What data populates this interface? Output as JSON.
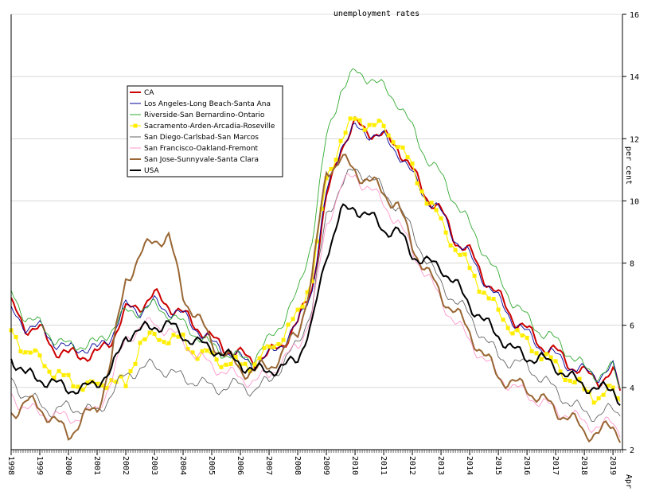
{
  "chart_data": {
    "type": "line",
    "title": "unemployment rates",
    "ylabel": "per cent",
    "xlabel": "",
    "ylim": [
      2,
      16
    ],
    "y_ticks": [
      2,
      4,
      6,
      8,
      10,
      12,
      14,
      16
    ],
    "x_range": [
      1998.0,
      2019.33
    ],
    "x_ticks": [
      "1998",
      "1999",
      "2000",
      "2001",
      "2002",
      "2003",
      "2004",
      "2005",
      "2006",
      "2007",
      "2008",
      "2009",
      "2010",
      "2011",
      "2012",
      "2013",
      "2014",
      "2015",
      "2016",
      "2017",
      "2018",
      "2019"
    ],
    "x_end_label": "Apr",
    "grid": "horizontal",
    "legend_position": "top-left",
    "series": [
      {
        "name": "CA",
        "color": "#cc0000",
        "style": "thick",
        "x": [
          1998.0,
          1998.5,
          1999.0,
          1999.5,
          2000.0,
          2000.5,
          2001.0,
          2001.5,
          2002.0,
          2002.5,
          2003.0,
          2003.5,
          2004.0,
          2004.5,
          2005.0,
          2005.5,
          2006.0,
          2006.5,
          2007.0,
          2007.5,
          2008.0,
          2008.5,
          2009.0,
          2009.5,
          2010.0,
          2010.5,
          2011.0,
          2011.5,
          2012.0,
          2012.5,
          2013.0,
          2013.5,
          2014.0,
          2014.5,
          2015.0,
          2015.5,
          2016.0,
          2016.5,
          2017.0,
          2017.5,
          2018.0,
          2018.5,
          2019.0,
          2019.25
        ],
        "y": [
          6.6,
          6.0,
          5.8,
          5.3,
          5.0,
          5.1,
          5.0,
          5.6,
          6.4,
          6.7,
          6.9,
          6.7,
          6.3,
          6.0,
          5.5,
          5.3,
          5.0,
          4.9,
          5.0,
          5.5,
          6.0,
          7.3,
          10.0,
          11.8,
          12.4,
          12.3,
          12.0,
          11.8,
          10.9,
          10.2,
          9.6,
          8.8,
          8.3,
          7.6,
          6.9,
          6.3,
          5.8,
          5.4,
          5.1,
          4.8,
          4.4,
          4.3,
          4.4,
          3.9
        ]
      },
      {
        "name": "Los Angeles-Long Beach-Santa Ana",
        "color": "#000099",
        "style": "thin",
        "x": [
          1998.0,
          1998.5,
          1999.0,
          1999.5,
          2000.0,
          2000.5,
          2001.0,
          2001.5,
          2002.0,
          2002.5,
          2003.0,
          2003.5,
          2004.0,
          2004.5,
          2005.0,
          2005.5,
          2006.0,
          2006.5,
          2007.0,
          2007.5,
          2008.0,
          2008.5,
          2009.0,
          2009.5,
          2010.0,
          2010.5,
          2011.0,
          2011.5,
          2012.0,
          2012.5,
          2013.0,
          2013.5,
          2014.0,
          2014.5,
          2015.0,
          2015.5,
          2016.0,
          2016.5,
          2017.0,
          2017.5,
          2018.0,
          2018.5,
          2019.0,
          2019.25
        ],
        "y": [
          6.4,
          6.0,
          5.9,
          5.5,
          5.2,
          5.3,
          5.2,
          5.7,
          6.6,
          6.5,
          6.7,
          6.5,
          6.3,
          5.9,
          5.4,
          5.2,
          4.9,
          4.8,
          5.0,
          5.5,
          6.0,
          7.2,
          10.2,
          11.8,
          12.3,
          12.2,
          12.0,
          11.6,
          10.8,
          10.1,
          9.6,
          8.8,
          8.2,
          7.5,
          6.8,
          6.2,
          5.7,
          5.3,
          5.0,
          4.7,
          4.5,
          4.4,
          4.6,
          4.0
        ]
      },
      {
        "name": "Riverside-San Bernardino-Ontario",
        "color": "#33aa33",
        "style": "thin",
        "x": [
          1998.0,
          1998.5,
          1999.0,
          1999.5,
          2000.0,
          2000.5,
          2001.0,
          2001.5,
          2002.0,
          2002.5,
          2003.0,
          2003.5,
          2004.0,
          2004.5,
          2005.0,
          2005.5,
          2006.0,
          2006.5,
          2007.0,
          2007.5,
          2008.0,
          2008.5,
          2009.0,
          2009.5,
          2010.0,
          2010.5,
          2011.0,
          2011.5,
          2012.0,
          2012.5,
          2013.0,
          2013.5,
          2014.0,
          2014.5,
          2015.0,
          2015.5,
          2016.0,
          2016.5,
          2017.0,
          2017.5,
          2018.0,
          2018.5,
          2019.0,
          2019.25
        ],
        "y": [
          7.0,
          6.3,
          6.0,
          5.6,
          5.3,
          5.4,
          5.4,
          5.9,
          6.4,
          6.5,
          6.6,
          6.4,
          6.0,
          5.7,
          5.3,
          5.1,
          4.9,
          5.0,
          5.5,
          6.2,
          7.0,
          8.8,
          12.0,
          13.6,
          14.1,
          14.0,
          13.6,
          13.2,
          12.3,
          11.4,
          10.8,
          10.0,
          9.2,
          8.4,
          7.5,
          6.8,
          6.2,
          5.8,
          5.5,
          5.1,
          4.6,
          4.4,
          4.6,
          4.0
        ]
      },
      {
        "name": "Sacramento-Arden-Arcadia-Roseville",
        "color": "#ffee00",
        "style": "marker",
        "x": [
          1998.0,
          1998.5,
          1999.0,
          1999.5,
          2000.0,
          2000.5,
          2001.0,
          2001.5,
          2002.0,
          2002.5,
          2003.0,
          2003.5,
          2004.0,
          2004.5,
          2005.0,
          2005.5,
          2006.0,
          2006.5,
          2007.0,
          2007.5,
          2008.0,
          2008.5,
          2009.0,
          2009.5,
          2010.0,
          2010.5,
          2011.0,
          2011.5,
          2012.0,
          2012.5,
          2013.0,
          2013.5,
          2014.0,
          2014.5,
          2015.0,
          2015.5,
          2016.0,
          2016.5,
          2017.0,
          2017.5,
          2018.0,
          2018.5,
          2019.0,
          2019.25
        ],
        "y": [
          5.8,
          5.2,
          4.9,
          4.5,
          4.2,
          4.1,
          4.0,
          4.3,
          4.0,
          5.5,
          5.6,
          5.6,
          5.5,
          5.1,
          5.0,
          4.8,
          4.7,
          4.8,
          5.2,
          5.7,
          6.3,
          7.6,
          10.6,
          12.0,
          12.6,
          12.5,
          12.3,
          11.9,
          11.0,
          10.1,
          9.3,
          8.5,
          7.8,
          7.1,
          6.4,
          5.9,
          5.4,
          5.1,
          4.7,
          4.3,
          3.9,
          3.7,
          3.9,
          3.6
        ]
      },
      {
        "name": "San Diego-Carlsbad-San Marcos",
        "color": "#666666",
        "style": "thin",
        "x": [
          1998.0,
          1998.5,
          1999.0,
          1999.5,
          2000.0,
          2000.5,
          2001.0,
          2001.5,
          2002.0,
          2002.5,
          2003.0,
          2003.5,
          2004.0,
          2004.5,
          2005.0,
          2005.5,
          2006.0,
          2006.5,
          2007.0,
          2007.5,
          2008.0,
          2008.5,
          2009.0,
          2009.5,
          2010.0,
          2010.5,
          2011.0,
          2011.5,
          2012.0,
          2012.5,
          2013.0,
          2013.5,
          2014.0,
          2014.5,
          2015.0,
          2015.5,
          2016.0,
          2016.5,
          2017.0,
          2017.5,
          2018.0,
          2018.5,
          2019.0,
          2019.25
        ],
        "y": [
          4.3,
          3.7,
          3.5,
          3.2,
          3.4,
          3.3,
          3.2,
          3.8,
          4.4,
          4.6,
          4.7,
          4.5,
          4.3,
          4.2,
          4.0,
          4.0,
          4.1,
          3.9,
          4.2,
          4.8,
          5.4,
          6.6,
          9.5,
          10.5,
          11.0,
          10.8,
          10.3,
          9.8,
          9.0,
          8.1,
          7.3,
          6.8,
          6.3,
          5.6,
          5.0,
          4.8,
          4.7,
          4.3,
          3.9,
          3.5,
          3.2,
          3.1,
          3.3,
          3.2
        ]
      },
      {
        "name": "San Francisco-Oakland-Fremont",
        "color": "#ff99cc",
        "style": "thin",
        "x": [
          1998.0,
          1998.5,
          1999.0,
          1999.5,
          2000.0,
          2000.5,
          2001.0,
          2001.5,
          2002.0,
          2002.5,
          2003.0,
          2003.5,
          2004.0,
          2004.5,
          2005.0,
          2005.5,
          2006.0,
          2006.5,
          2007.0,
          2007.5,
          2008.0,
          2008.5,
          2009.0,
          2009.5,
          2010.0,
          2010.5,
          2011.0,
          2011.5,
          2012.0,
          2012.5,
          2013.0,
          2013.5,
          2014.0,
          2014.5,
          2015.0,
          2015.5,
          2016.0,
          2016.5,
          2017.0,
          2017.5,
          2018.0,
          2018.5,
          2019.0,
          2019.25
        ],
        "y": [
          3.8,
          3.3,
          3.2,
          3.1,
          3.0,
          3.1,
          3.3,
          4.2,
          5.6,
          5.9,
          6.1,
          5.8,
          5.5,
          5.0,
          4.7,
          4.5,
          4.3,
          4.2,
          4.4,
          4.9,
          5.3,
          6.4,
          9.2,
          10.5,
          10.8,
          10.4,
          9.9,
          9.3,
          8.4,
          7.6,
          6.8,
          6.1,
          5.5,
          4.9,
          4.4,
          4.0,
          3.8,
          3.5,
          3.3,
          3.1,
          2.9,
          2.7,
          2.9,
          2.6
        ]
      },
      {
        "name": "San Jose-Sunnyvale-Santa Clara",
        "color": "#996633",
        "style": "thick",
        "x": [
          1998.0,
          1998.5,
          1999.0,
          1999.5,
          2000.0,
          2000.5,
          2001.0,
          2001.5,
          2002.0,
          2002.5,
          2003.0,
          2003.5,
          2004.0,
          2004.5,
          2005.0,
          2005.5,
          2006.0,
          2006.5,
          2007.0,
          2007.5,
          2008.0,
          2008.5,
          2009.0,
          2009.5,
          2010.0,
          2010.5,
          2011.0,
          2011.5,
          2012.0,
          2012.5,
          2013.0,
          2013.5,
          2014.0,
          2014.5,
          2015.0,
          2015.5,
          2016.0,
          2016.5,
          2017.0,
          2017.5,
          2018.0,
          2018.5,
          2019.0,
          2019.25
        ],
        "y": [
          3.2,
          3.5,
          3.4,
          2.9,
          2.5,
          3.0,
          3.3,
          4.9,
          7.5,
          8.2,
          8.8,
          8.8,
          7.0,
          6.2,
          5.5,
          5.0,
          4.6,
          4.5,
          4.7,
          5.1,
          5.8,
          7.5,
          11.0,
          11.3,
          11.0,
          10.6,
          10.3,
          9.8,
          8.6,
          7.7,
          7.0,
          6.4,
          5.8,
          5.0,
          4.4,
          4.1,
          4.0,
          3.6,
          3.3,
          3.0,
          2.6,
          2.5,
          2.8,
          2.5
        ]
      },
      {
        "name": "USA",
        "color": "#000000",
        "style": "thick",
        "x": [
          1998.0,
          1998.5,
          1999.0,
          1999.5,
          2000.0,
          2000.5,
          2001.0,
          2001.5,
          2002.0,
          2002.5,
          2003.0,
          2003.5,
          2004.0,
          2004.5,
          2005.0,
          2005.5,
          2006.0,
          2006.5,
          2007.0,
          2007.5,
          2008.0,
          2008.5,
          2009.0,
          2009.5,
          2010.0,
          2010.5,
          2011.0,
          2011.5,
          2012.0,
          2012.5,
          2013.0,
          2013.5,
          2014.0,
          2014.5,
          2015.0,
          2015.5,
          2016.0,
          2016.5,
          2017.0,
          2017.5,
          2018.0,
          2018.5,
          2019.0,
          2019.25
        ],
        "y": [
          5.0,
          4.4,
          4.3,
          4.1,
          4.0,
          3.9,
          4.2,
          4.5,
          5.7,
          5.8,
          6.0,
          6.0,
          5.7,
          5.4,
          5.3,
          5.0,
          4.8,
          4.5,
          4.6,
          4.6,
          5.0,
          6.0,
          8.3,
          9.6,
          9.8,
          9.5,
          9.1,
          9.0,
          8.3,
          8.0,
          7.9,
          7.3,
          6.7,
          6.1,
          5.7,
          5.2,
          5.0,
          4.9,
          4.7,
          4.3,
          4.1,
          3.9,
          4.0,
          3.6
        ]
      }
    ]
  }
}
